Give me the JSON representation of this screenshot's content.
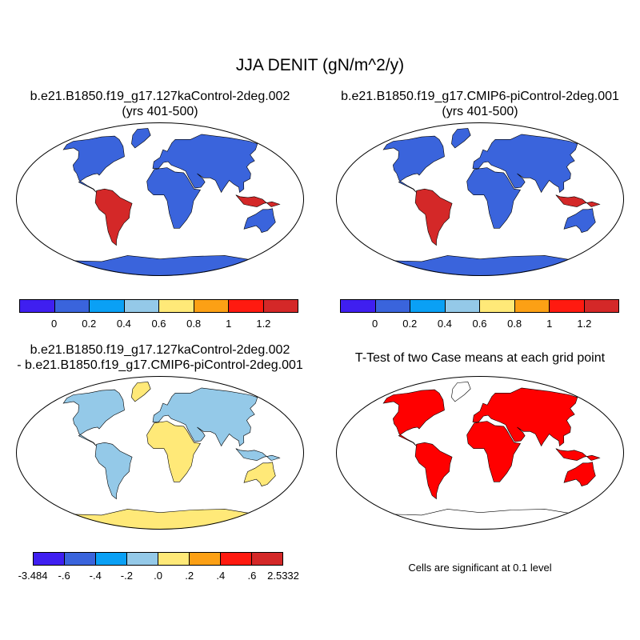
{
  "figure": {
    "title": "JJA DENIT (gN/m^2/y)"
  },
  "panels": [
    {
      "id": "p1",
      "title_line1": "b.e21.B1850.f19_g17.127kaControl-2deg.002",
      "title_line2": "(yrs 401-500)"
    },
    {
      "id": "p2",
      "title_line1": "b.e21.B1850.f19_g17.CMIP6-piControl-2deg.001",
      "title_line2": "(yrs 401-500)"
    },
    {
      "id": "p3",
      "title_line1": "b.e21.B1850.f19_g17.127kaControl-2deg.002",
      "title_line2": "- b.e21.B1850.f19_g17.CMIP6-piControl-2deg.001"
    },
    {
      "id": "p4",
      "title_line1": "T-Test of two Case means at each grid point",
      "note": "Cells are significant at 0.1 level"
    }
  ],
  "colorbars": {
    "abs": {
      "colors": [
        "#3f1ff0",
        "#3a64dc",
        "#0aa0f5",
        "#94c9e8",
        "#ffe978",
        "#fca015",
        "#ff1a10",
        "#d42828"
      ],
      "labels": [
        "0",
        "0.2",
        "0.4",
        "0.6",
        "0.8",
        "1",
        "1.2"
      ]
    },
    "diff": {
      "colors": [
        "#3f1ff0",
        "#3a64dc",
        "#0aa0f5",
        "#94c9e8",
        "#ffe978",
        "#fca015",
        "#ff1a10",
        "#d42828"
      ],
      "labels": [
        "-3.484",
        "-.6",
        "-.4",
        "-.2",
        ".0",
        ".2",
        ".4",
        ".6",
        "2.5332"
      ]
    }
  },
  "colors": {
    "land_case1": "#3a64dc",
    "land_case2": "#3a64dc",
    "land_diff": "#94c9e8",
    "significant": "#ff0000",
    "ocean": "#ffffff"
  }
}
